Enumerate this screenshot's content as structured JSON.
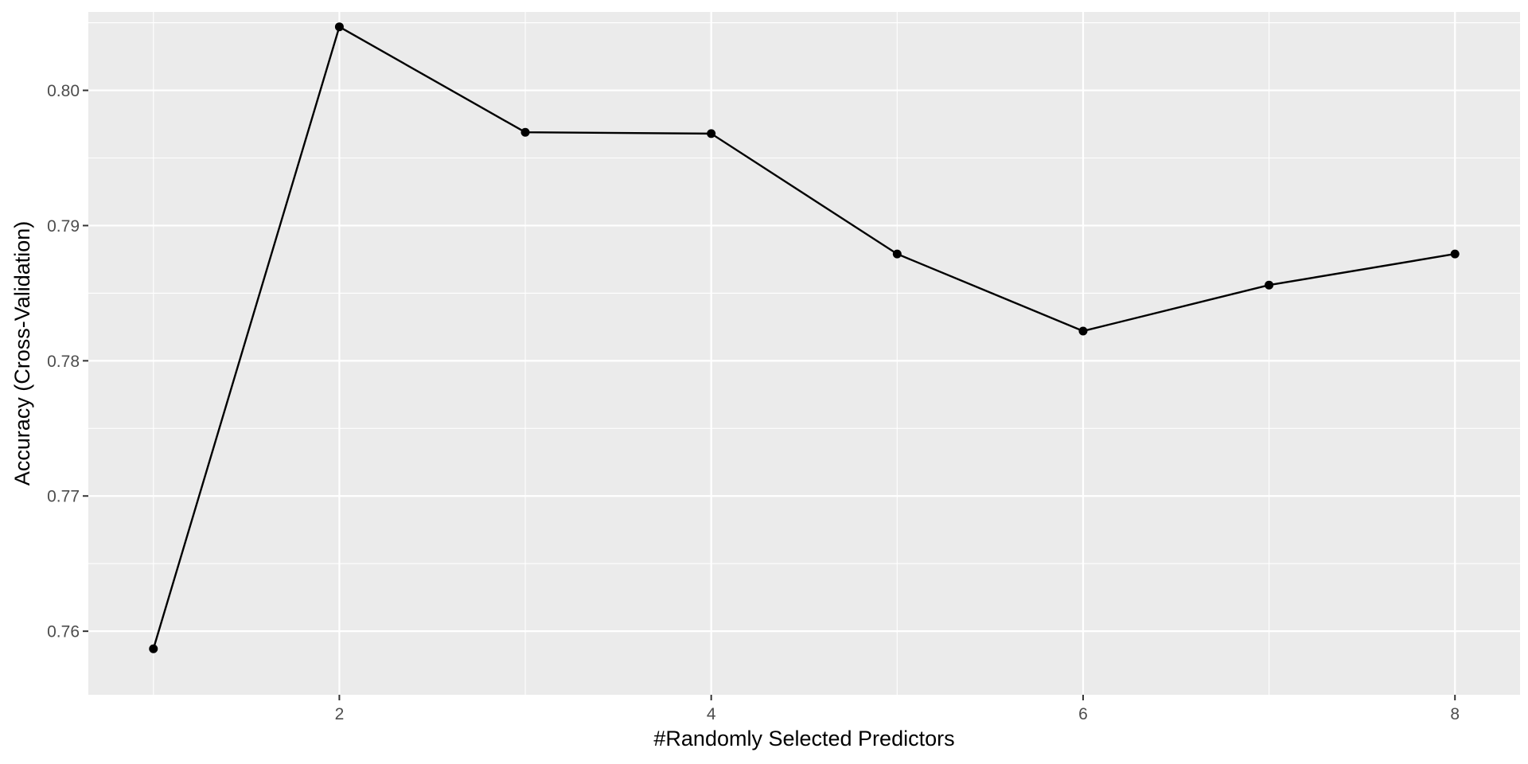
{
  "chart_data": {
    "type": "line",
    "title": "",
    "xlabel": "#Randomly Selected Predictors",
    "ylabel": "Accuracy (Cross-Validation)",
    "x": [
      1,
      2,
      3,
      4,
      5,
      6,
      7,
      8
    ],
    "y": [
      0.7587,
      0.8047,
      0.7969,
      0.7968,
      0.7879,
      0.7822,
      0.7856,
      0.7879
    ],
    "xlim": [
      0.65,
      8.35
    ],
    "ylim": [
      0.7553,
      0.8058
    ],
    "xticks": [
      2,
      4,
      6,
      8
    ],
    "xtick_labels": [
      "2",
      "4",
      "6",
      "8"
    ],
    "yticks": [
      0.76,
      0.77,
      0.78,
      0.79,
      0.8
    ],
    "ytick_labels": [
      "0.76",
      "0.77",
      "0.78",
      "0.79",
      "0.80"
    ],
    "grid": true,
    "legend": "none",
    "colors": {
      "panel": "#EBEBEB",
      "grid": "#FFFFFF",
      "series": "#000000",
      "tick_text": "#4D4D4D"
    }
  }
}
